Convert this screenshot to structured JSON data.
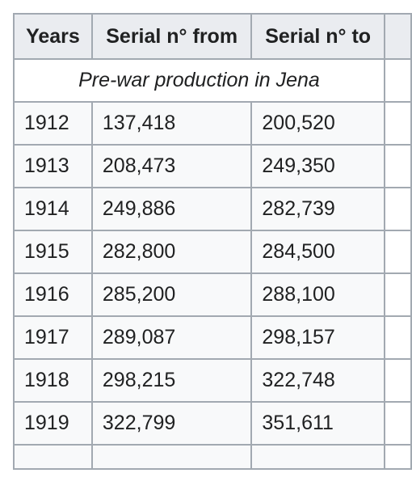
{
  "table": {
    "headers": [
      "Years",
      "Serial n° from",
      "Serial n° to"
    ],
    "section_title": "Pre-war production in Jena",
    "rows": [
      {
        "year": "1912",
        "from": "137,418",
        "to": "200,520"
      },
      {
        "year": "1913",
        "from": "208,473",
        "to": "249,350"
      },
      {
        "year": "1914",
        "from": "249,886",
        "to": "282,739"
      },
      {
        "year": "1915",
        "from": "282,800",
        "to": "284,500"
      },
      {
        "year": "1916",
        "from": "285,200",
        "to": "288,100"
      },
      {
        "year": "1917",
        "from": "289,087",
        "to": "298,157"
      },
      {
        "year": "1918",
        "from": "298,215",
        "to": "322,748"
      },
      {
        "year": "1919",
        "from": "322,799",
        "to": "351,611"
      }
    ]
  }
}
